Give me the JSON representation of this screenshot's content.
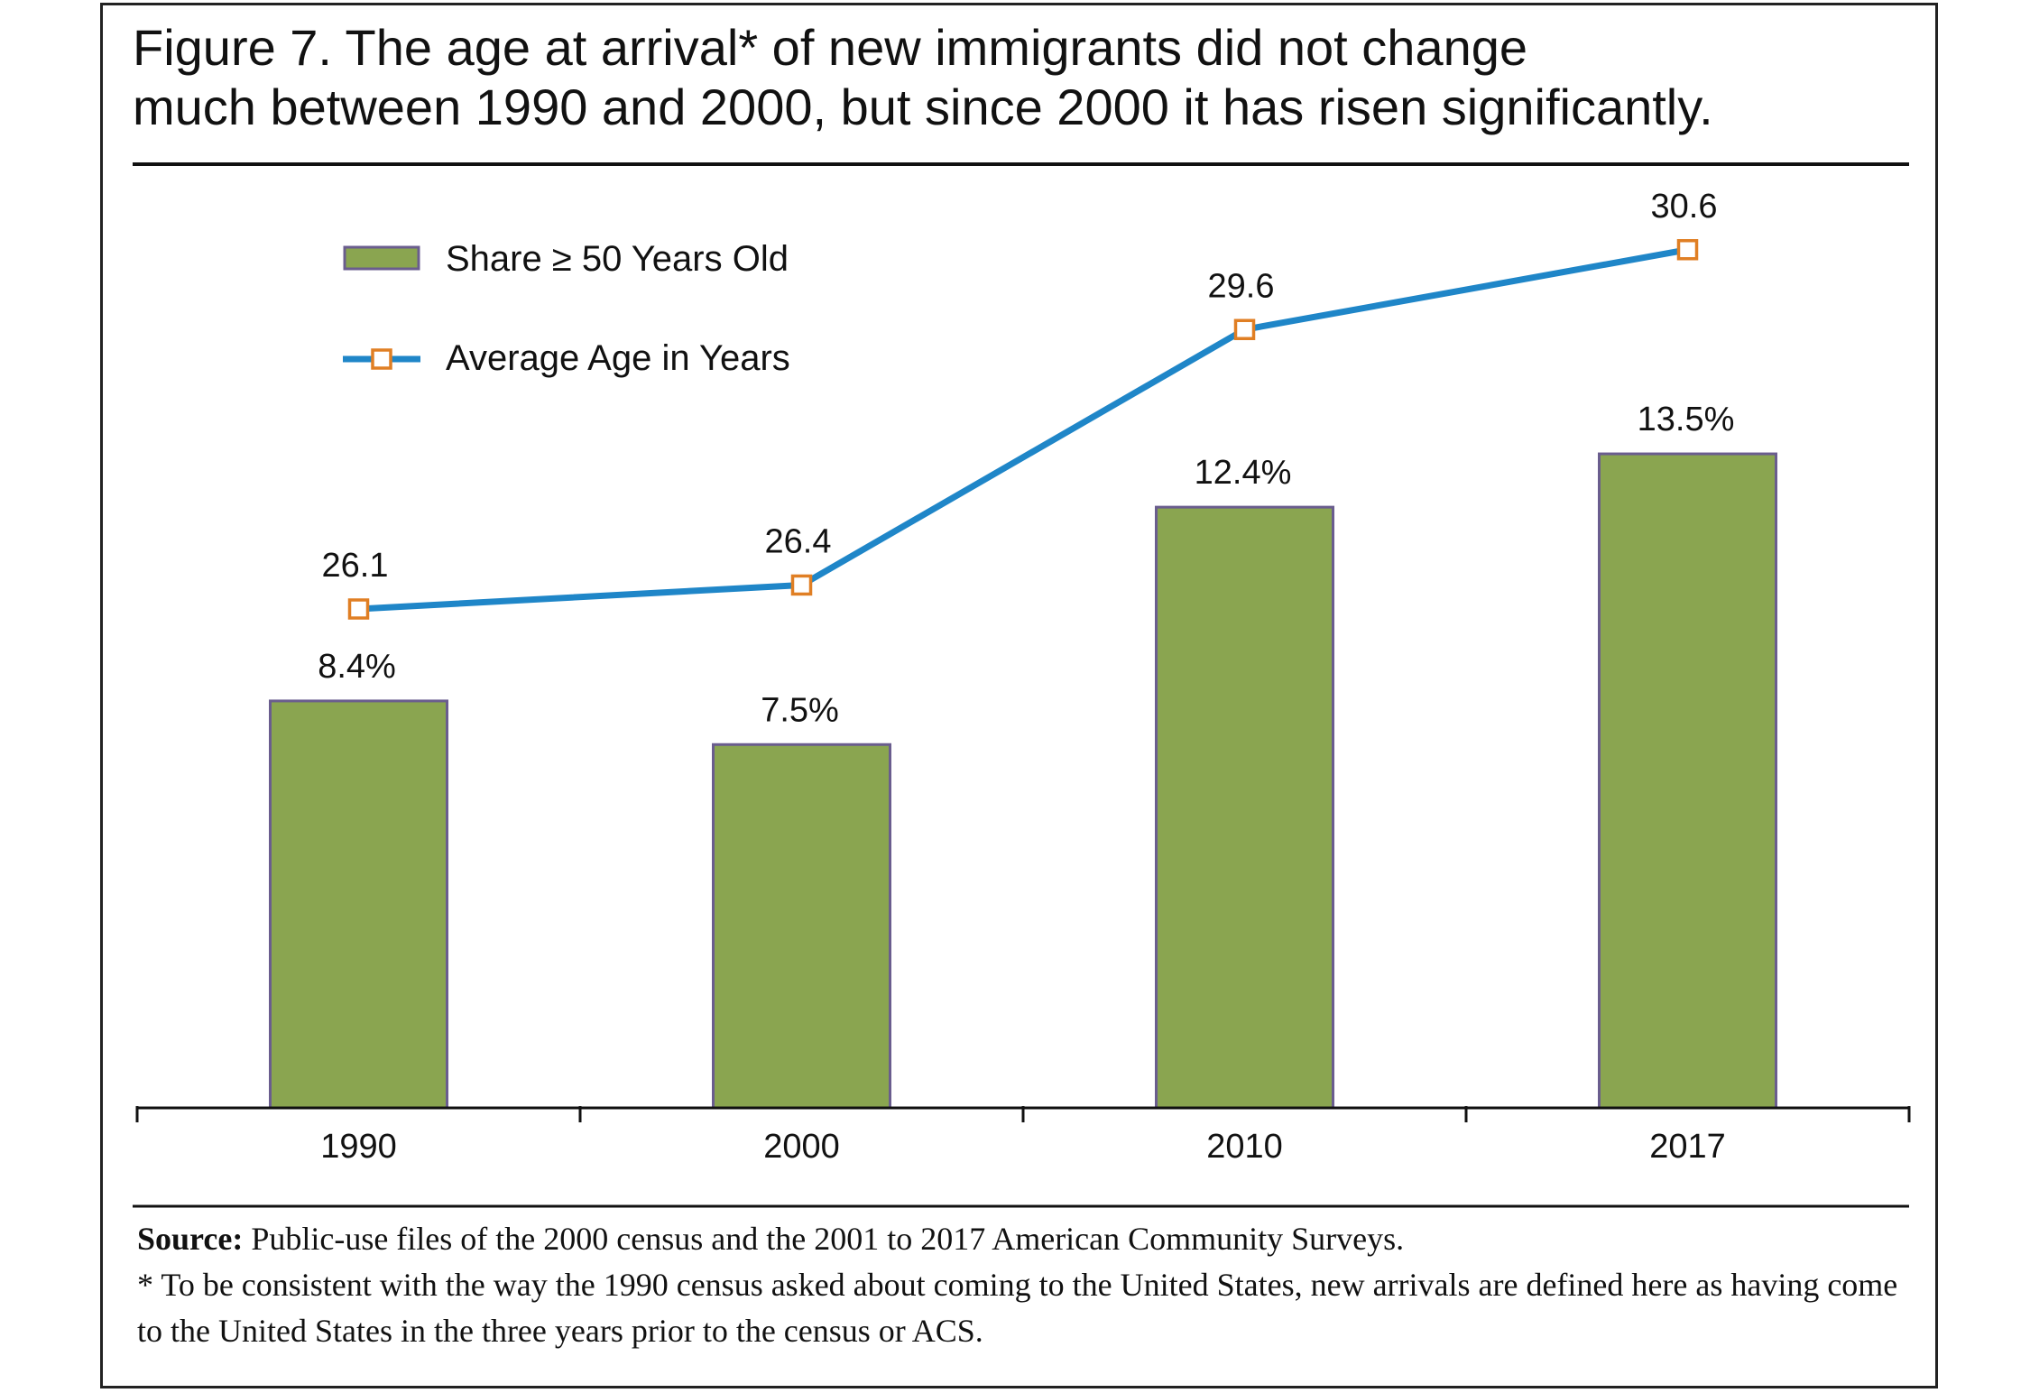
{
  "figure": {
    "title_line1": "Figure 7. The age at arrival* of new immigrants did not change",
    "title_line2": "much between 1990 and 2000, but since 2000 it has risen significantly."
  },
  "chart_data": {
    "type": "bar",
    "categories": [
      "1990",
      "2000",
      "2010",
      "2017"
    ],
    "series": [
      {
        "name": "Share ≥ 50 Years Old",
        "type": "bar",
        "values": [
          8.4,
          7.5,
          12.4,
          13.5
        ],
        "labels": [
          "8.4%",
          "7.5%",
          "12.4%",
          "13.5%"
        ],
        "color": "#8aa550",
        "border": "#6a5d8e"
      },
      {
        "name": "Average Age in Years",
        "type": "line",
        "values": [
          26.1,
          26.4,
          29.6,
          30.6
        ],
        "labels": [
          "26.1",
          "26.4",
          "29.6",
          "30.6"
        ],
        "color": "#1f86c8",
        "marker_color": "#e07f24"
      }
    ],
    "legend_position": "top-left",
    "grid": false
  },
  "notes": {
    "source_label": "Source:",
    "source_text": " Public-use files of the 2000 census and the 2001 to 2017 American Community Surveys.",
    "footnote": "* To be consistent with the way the 1990 census asked about coming to the United States, new arrivals are defined here as having come to the United States in the three years prior to the census or ACS."
  }
}
